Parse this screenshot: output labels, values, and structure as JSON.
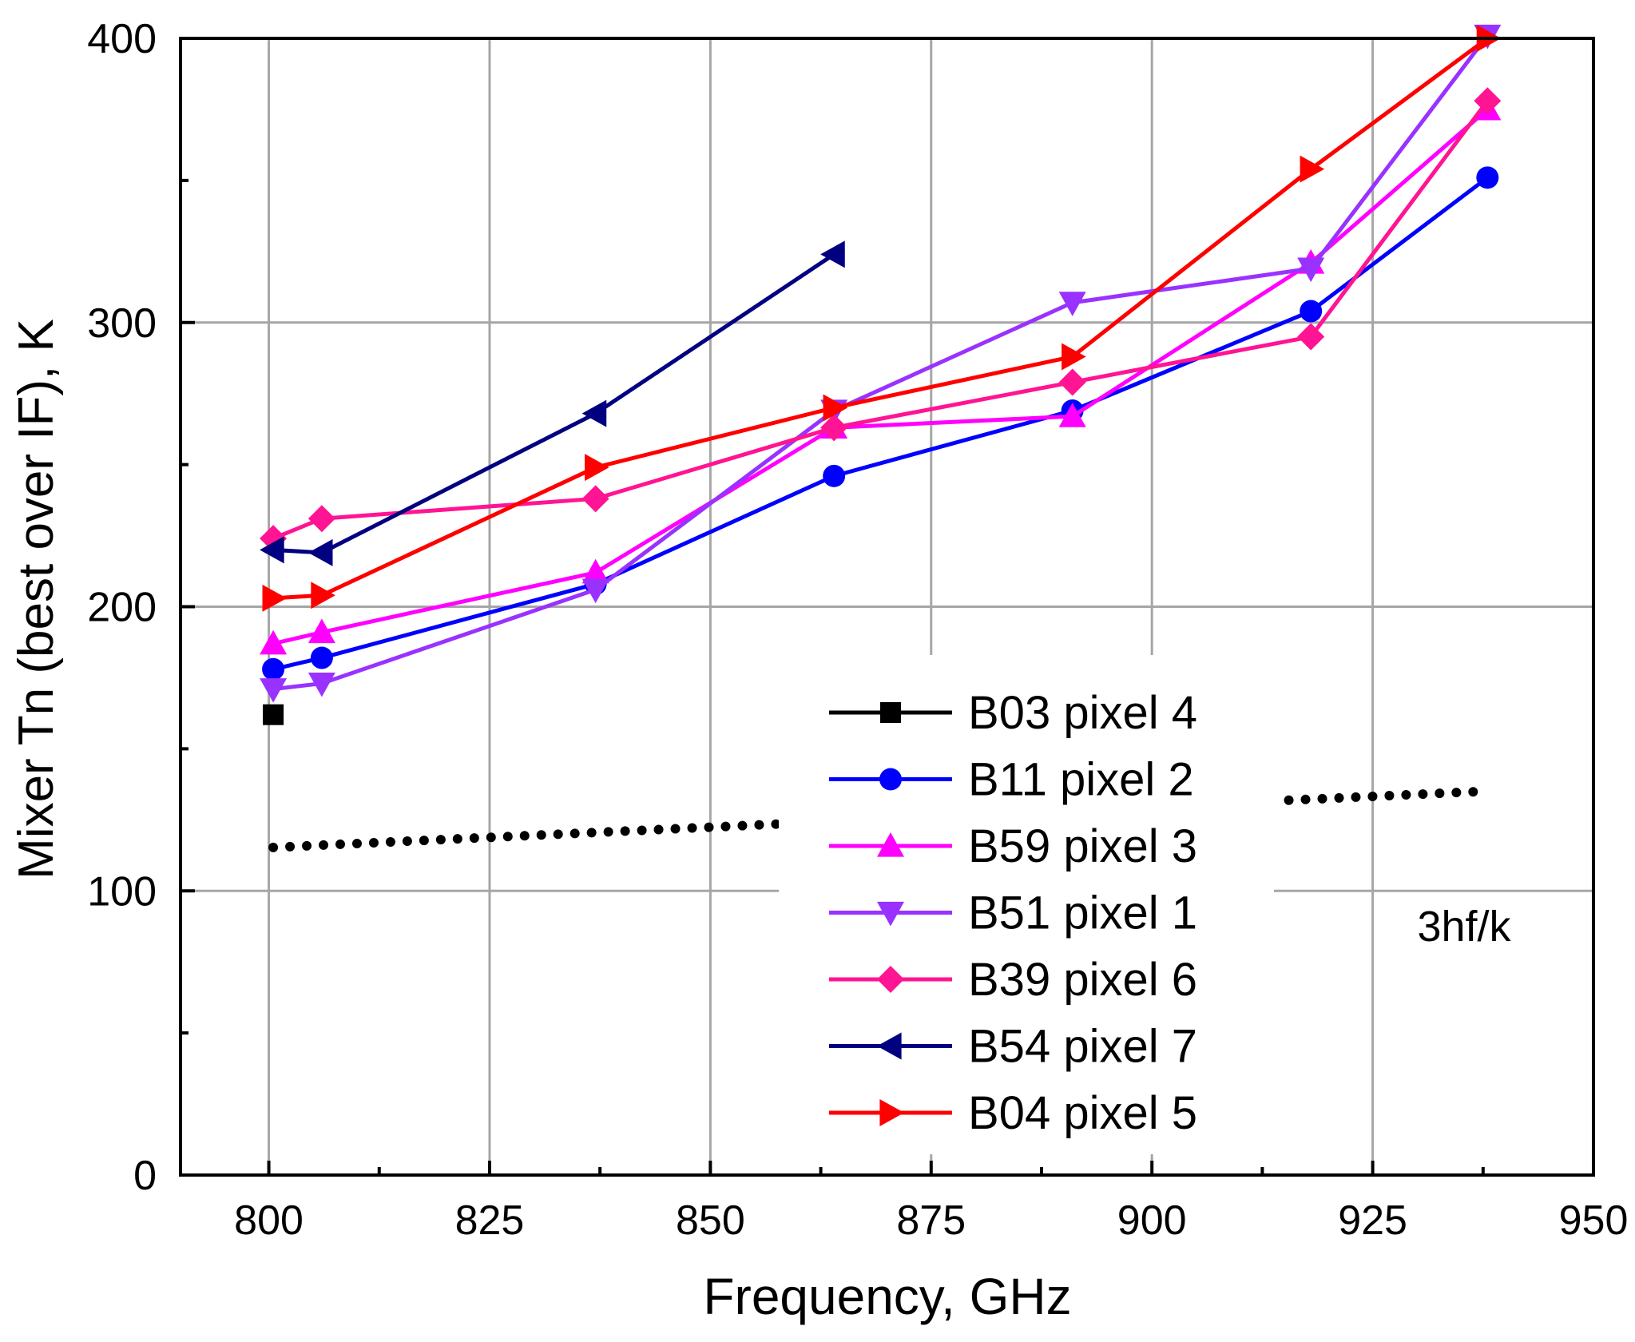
{
  "chart_data": {
    "type": "line",
    "title": "",
    "xlabel": "Frequency, GHz",
    "ylabel": "Mixer Tn (best over IF), K",
    "xlim": [
      790,
      950
    ],
    "ylim": [
      0,
      400
    ],
    "xticks": [
      800,
      825,
      850,
      875,
      900,
      925,
      950
    ],
    "yticks": [
      0,
      100,
      200,
      300,
      400
    ],
    "x_minor_ticks": [
      812.5,
      837.5,
      862.5,
      887.5,
      912.5,
      937.5
    ],
    "y_minor_ticks": [
      50,
      150,
      250,
      350
    ],
    "grid": true,
    "legend_position": "lower-center",
    "annotation": "3hf/k",
    "series": [
      {
        "name": "B03 pixel 4",
        "color": "#000000",
        "marker": "square",
        "x": [
          800.5
        ],
        "y": [
          162
        ]
      },
      {
        "name": "B11 pixel 2",
        "color": "#0000ff",
        "marker": "circle",
        "x": [
          800.5,
          806,
          837,
          864,
          891,
          918,
          938
        ],
        "y": [
          178,
          182,
          208,
          246,
          269,
          304,
          351
        ]
      },
      {
        "name": "B59 pixel 3",
        "color": "#ff00ff",
        "marker": "triangle-up",
        "x": [
          800.5,
          806,
          837,
          864,
          891,
          918,
          938
        ],
        "y": [
          187,
          191,
          212,
          263,
          267,
          321,
          375
        ]
      },
      {
        "name": "B51 pixel 1",
        "color": "#9932ff",
        "marker": "triangle-down",
        "x": [
          800.5,
          806,
          837,
          864,
          891,
          918,
          938
        ],
        "y": [
          171,
          173,
          206,
          269,
          307,
          319,
          401
        ]
      },
      {
        "name": "B39 pixel 6",
        "color": "#ff1493",
        "marker": "diamond",
        "x": [
          800.5,
          806,
          837,
          864,
          891,
          918,
          938
        ],
        "y": [
          224,
          231,
          238,
          263,
          279,
          295,
          378
        ]
      },
      {
        "name": "B54 pixel 7",
        "color": "#000080",
        "marker": "triangle-left",
        "x": [
          800.5,
          806,
          837,
          864
        ],
        "y": [
          220,
          219,
          268,
          324
        ]
      },
      {
        "name": "B04 pixel 5",
        "color": "#ff0000",
        "marker": "triangle-right",
        "x": [
          800.5,
          806,
          837,
          864,
          891,
          918,
          938
        ],
        "y": [
          203,
          204,
          249,
          270,
          288,
          354,
          400
        ]
      }
    ],
    "reference_line": {
      "name": "3hf/k",
      "style": "dotted",
      "color": "#000000",
      "x": [
        800.5,
        857.5,
        915.5,
        938
      ],
      "y": [
        115.3,
        123.5,
        131.9,
        135.1
      ]
    }
  }
}
